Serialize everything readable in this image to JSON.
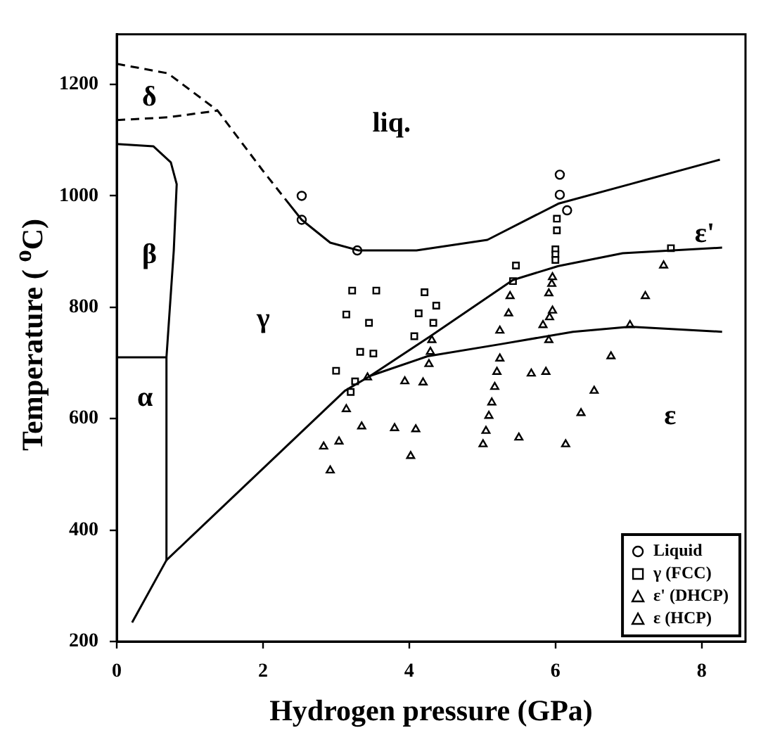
{
  "chart_data": {
    "type": "scatter",
    "xlabel": "Hydrogen pressure (GPa)",
    "ylabel": "Temperature ( $^{o}$C)",
    "xlim": [
      0,
      8.6
    ],
    "ylim": [
      200,
      1290
    ],
    "xticks": [
      0,
      2,
      4,
      6,
      8
    ],
    "yticks": [
      200,
      400,
      600,
      800,
      1000,
      1200
    ],
    "grid": false,
    "legend": "bottom right",
    "series": [
      {
        "type": "line",
        "line_style": "dashed",
        "color": "#000000",
        "x": [
          0,
          0.7,
          1.38,
          2.0,
          2.3
        ],
        "values": [
          1237,
          1220,
          1153,
          1045,
          995
        ]
      },
      {
        "type": "line",
        "line_style": "solid",
        "color": "#000000",
        "x": [
          2.3,
          2.53,
          2.92,
          3.31,
          4.1,
          5.07,
          6.04,
          7.02,
          8.25
        ],
        "values": [
          995,
          957,
          916,
          902,
          902,
          921,
          986,
          1021,
          1065
        ]
      },
      {
        "type": "line",
        "line_style": "dashed",
        "color": "#000000",
        "x": [
          0,
          0.7,
          1.38
        ],
        "values": [
          1136,
          1141,
          1153
        ]
      },
      {
        "type": "line",
        "line_style": "solid",
        "color": "#000000",
        "x": [
          0,
          0.5,
          0.74,
          0.82,
          0.78,
          0.68,
          0.68
        ],
        "values": [
          1093,
          1089,
          1060,
          1021,
          902,
          710,
          346
        ]
      },
      {
        "type": "line",
        "line_style": "solid",
        "color": "#000000",
        "x": [
          0,
          0.68
        ],
        "values": [
          710,
          710
        ]
      },
      {
        "type": "line",
        "line_style": "solid",
        "color": "#000000",
        "x": [
          0.21,
          0.68,
          3.12,
          3.47,
          4.29,
          5.42,
          6.04,
          6.92,
          8.28
        ],
        "values": [
          234,
          346,
          650,
          677,
          748,
          849,
          874,
          897,
          907
        ]
      },
      {
        "type": "line",
        "line_style": "solid",
        "color": "#000000",
        "x": [
          3.47,
          4.25,
          5.26,
          6.24,
          7.02,
          8.28
        ],
        "values": [
          677,
          712,
          734,
          756,
          765,
          756
        ]
      },
      {
        "type": "scatter",
        "name": "Liquid",
        "marker": "circle",
        "color": "#000000",
        "x": [
          2.53,
          2.53,
          3.29,
          6.06,
          6.06,
          6.16
        ],
        "values": [
          1000,
          957,
          902,
          1038,
          1002,
          974
        ]
      },
      {
        "type": "scatter",
        "name": "γ (FCC)",
        "marker": "square",
        "color": "#000000",
        "x": [
          3.22,
          3.55,
          3.14,
          3.45,
          4.21,
          4.37,
          4.13,
          4.33,
          4.07,
          3.33,
          3.51,
          3.0,
          3.26,
          3.2,
          5.46,
          5.42,
          6.02,
          6.02,
          6.0,
          6.0,
          6.0,
          7.58
        ],
        "values": [
          830,
          830,
          787,
          772,
          827,
          803,
          789,
          772,
          748,
          720,
          717,
          686,
          667,
          648,
          875,
          847,
          959,
          938,
          904,
          895,
          885,
          906
        ]
      },
      {
        "type": "scatter",
        "name": "ε' (DHCP)",
        "marker": "triangle",
        "color": "#000000",
        "x": [
          5.38,
          5.36,
          5.96,
          5.95,
          5.91,
          5.96,
          5.92,
          5.83,
          5.91,
          4.31,
          4.29,
          4.27,
          7.48,
          7.23,
          7.02
        ],
        "values": [
          820,
          789,
          854,
          842,
          825,
          794,
          782,
          768,
          741,
          741,
          720,
          698,
          875,
          820,
          768
        ]
      },
      {
        "type": "scatter",
        "name": "ε (HCP)",
        "marker": "triangle",
        "color": "#000000",
        "x": [
          3.43,
          3.14,
          2.83,
          3.04,
          2.92,
          3.35,
          3.8,
          4.09,
          4.02,
          3.94,
          4.19,
          5.24,
          5.24,
          5.2,
          5.17,
          5.13,
          5.09,
          5.05,
          5.01,
          5.5,
          5.67,
          5.87,
          6.14,
          6.35,
          6.53,
          6.76
        ],
        "values": [
          674,
          617,
          550,
          559,
          507,
          586,
          583,
          581,
          533,
          667,
          665,
          758,
          708,
          684,
          657,
          629,
          605,
          578,
          554,
          566,
          681,
          684,
          554,
          610,
          650,
          712
        ]
      }
    ],
    "annotations": [
      "δ",
      "liq.",
      "β",
      "γ",
      "ε'",
      "α",
      "ε"
    ]
  }
}
